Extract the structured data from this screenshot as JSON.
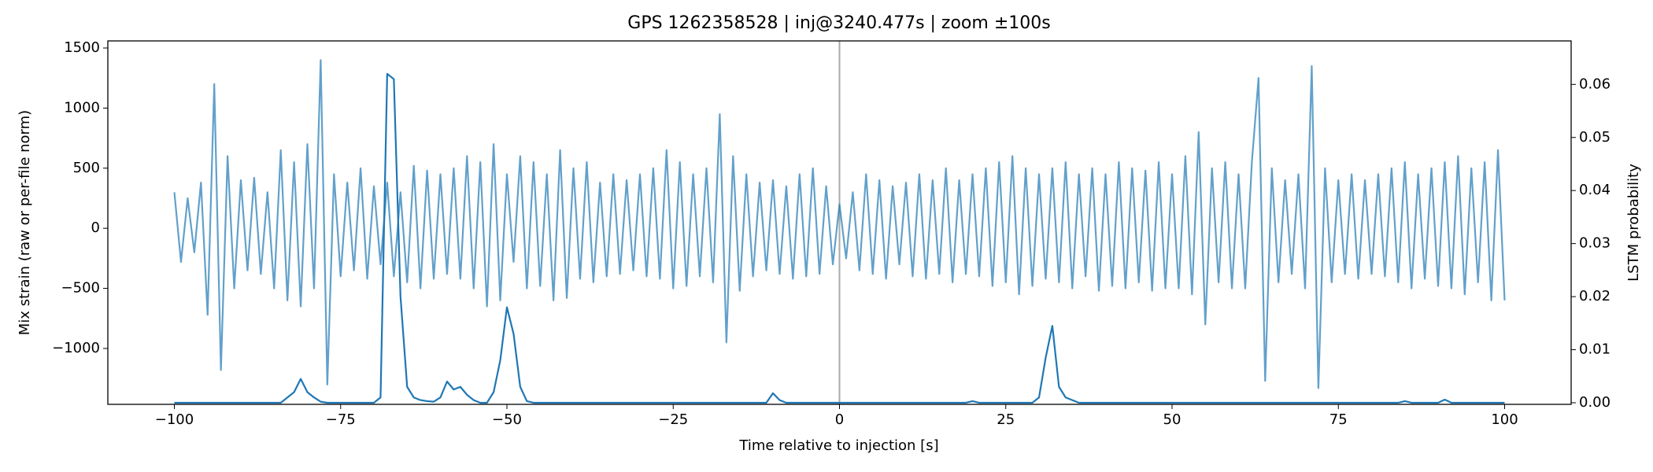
{
  "chart_data": {
    "type": "line",
    "title": "GPS 1262358528 | inj@3240.477s | zoom ±100s",
    "xlabel": "Time relative to injection [s]",
    "ylabel": "Mix strain (raw or per-file norm)",
    "y2label": "LSTM probability",
    "xlim": [
      -110,
      110
    ],
    "xticks": [
      {
        "value": -100,
        "label": "−100"
      },
      {
        "value": -75,
        "label": "−75"
      },
      {
        "value": -50,
        "label": "−50"
      },
      {
        "value": -25,
        "label": "−25"
      },
      0,
      25,
      50,
      75,
      100
    ],
    "ylim": [
      -1465,
      1559
    ],
    "yticks": [
      {
        "value": -1000,
        "label": "−1000"
      },
      {
        "value": -500,
        "label": "−500"
      },
      0,
      500,
      1000,
      1500
    ],
    "y2lim": [
      -0.0003,
      0.0682
    ],
    "y2ticks": [
      {
        "value": 0,
        "label": "0.00"
      },
      0.01,
      0.02,
      0.03,
      0.04,
      0.05,
      0.06
    ],
    "vline": {
      "x": 0,
      "color": "#aaaaaa"
    },
    "x": [
      -100,
      -99,
      -98,
      -97,
      -96,
      -95,
      -94,
      -93,
      -92,
      -91,
      -90,
      -89,
      -88,
      -87,
      -86,
      -85,
      -84,
      -83,
      -82,
      -81,
      -80,
      -79,
      -78,
      -77,
      -76,
      -75,
      -74,
      -73,
      -72,
      -71,
      -70,
      -69,
      -68,
      -67,
      -66,
      -65,
      -64,
      -63,
      -62,
      -61,
      -60,
      -59,
      -58,
      -57,
      -56,
      -55,
      -54,
      -53,
      -52,
      -51,
      -50,
      -49,
      -48,
      -47,
      -46,
      -45,
      -44,
      -43,
      -42,
      -41,
      -40,
      -39,
      -38,
      -37,
      -36,
      -35,
      -34,
      -33,
      -32,
      -31,
      -30,
      -29,
      -28,
      -27,
      -26,
      -25,
      -24,
      -23,
      -22,
      -21,
      -20,
      -19,
      -18,
      -17,
      -16,
      -15,
      -14,
      -13,
      -12,
      -11,
      -10,
      -9,
      -8,
      -7,
      -6,
      -5,
      -4,
      -3,
      -2,
      -1,
      0,
      1,
      2,
      3,
      4,
      5,
      6,
      7,
      8,
      9,
      10,
      11,
      12,
      13,
      14,
      15,
      16,
      17,
      18,
      19,
      20,
      21,
      22,
      23,
      24,
      25,
      26,
      27,
      28,
      29,
      30,
      31,
      32,
      33,
      34,
      35,
      36,
      37,
      38,
      39,
      40,
      41,
      42,
      43,
      44,
      45,
      46,
      47,
      48,
      49,
      50,
      51,
      52,
      53,
      54,
      55,
      56,
      57,
      58,
      59,
      60,
      61,
      62,
      63,
      64,
      65,
      66,
      67,
      68,
      69,
      70,
      71,
      72,
      73,
      74,
      75,
      76,
      77,
      78,
      79,
      80,
      81,
      82,
      83,
      84,
      85,
      86,
      87,
      88,
      89,
      90,
      91,
      92,
      93,
      94,
      95,
      96,
      97,
      98,
      99,
      100
    ],
    "series": [
      {
        "color": "#1f77b4",
        "alpha": 0.7,
        "axis": "y",
        "values": [
          300,
          -280,
          250,
          -200,
          380,
          -720,
          1200,
          -1180,
          600,
          -500,
          400,
          -350,
          420,
          -380,
          300,
          -500,
          650,
          -600,
          550,
          -650,
          700,
          -500,
          1400,
          -1300,
          450,
          -400,
          380,
          -350,
          500,
          -420,
          350,
          -300,
          380,
          -400,
          300,
          -450,
          520,
          -500,
          480,
          -420,
          450,
          -380,
          500,
          -420,
          600,
          -500,
          550,
          -650,
          700,
          -600,
          450,
          -280,
          600,
          -500,
          550,
          -480,
          450,
          -600,
          650,
          -580,
          500,
          -420,
          550,
          -450,
          380,
          -400,
          450,
          -380,
          400,
          -350,
          450,
          -400,
          500,
          -420,
          650,
          -500,
          550,
          -480,
          450,
          -400,
          500,
          -450,
          950,
          -950,
          600,
          -520,
          450,
          -400,
          380,
          -350,
          400,
          -380,
          350,
          -420,
          450,
          -400,
          500,
          -380,
          350,
          -300,
          200,
          -250,
          300,
          -350,
          450,
          -380,
          400,
          -420,
          350,
          -300,
          380,
          -400,
          450,
          -420,
          400,
          -380,
          500,
          -450,
          400,
          -380,
          450,
          -400,
          500,
          -480,
          550,
          -450,
          600,
          -550,
          500,
          -480,
          450,
          -420,
          500,
          -450,
          550,
          -500,
          450,
          -400,
          500,
          -520,
          450,
          -480,
          550,
          -500,
          500,
          -450,
          480,
          -520,
          550,
          -500,
          450,
          -500,
          600,
          -550,
          800,
          -800,
          500,
          -450,
          550,
          -500,
          450,
          -500,
          550,
          1250,
          -1270,
          500,
          -450,
          400,
          -380,
          450,
          -500,
          1350,
          -1330,
          500,
          -450,
          400,
          -380,
          450,
          -420,
          400,
          -380,
          450,
          -400,
          500,
          -450,
          550,
          -500,
          450,
          -420,
          500,
          -480,
          550,
          -500,
          600,
          -550,
          500,
          -450,
          550,
          -600,
          650,
          -600
        ]
      },
      {
        "color": "#1f77b4",
        "alpha": 1,
        "axis": "y2",
        "values": [
          0,
          0,
          0,
          0,
          0,
          0,
          0,
          0,
          0,
          0,
          0,
          0,
          0,
          0,
          0,
          0,
          0,
          0.001,
          0.002,
          0.0045,
          0.002,
          0.001,
          0.0002,
          0,
          0,
          0,
          0,
          0,
          0,
          0,
          0,
          0.001,
          0.062,
          0.061,
          0.02,
          0.003,
          0.001,
          0.0005,
          0.0003,
          0.0002,
          0.001,
          0.004,
          0.0025,
          0.003,
          0.0015,
          0.0005,
          0,
          0,
          0.002,
          0.008,
          0.018,
          0.013,
          0.003,
          0.0003,
          0,
          0,
          0,
          0,
          0,
          0,
          0,
          0,
          0,
          0,
          0,
          0,
          0,
          0,
          0,
          0,
          0,
          0,
          0,
          0,
          0,
          0,
          0,
          0,
          0,
          0,
          0,
          0,
          0,
          0,
          0,
          0,
          0,
          0,
          0,
          0,
          0.0018,
          0.0005,
          0,
          0,
          0,
          0,
          0,
          0,
          0,
          0,
          0,
          0,
          0,
          0,
          0,
          0,
          0,
          0,
          0,
          0,
          0,
          0,
          0,
          0,
          0,
          0,
          0,
          0,
          0,
          0,
          0.0003,
          0,
          0,
          0,
          0,
          0,
          0,
          0,
          0,
          0,
          0.001,
          0.0085,
          0.0145,
          0.003,
          0.001,
          0.0005,
          0,
          0,
          0,
          0,
          0,
          0,
          0,
          0,
          0,
          0,
          0,
          0,
          0,
          0,
          0,
          0,
          0,
          0,
          0,
          0,
          0,
          0,
          0,
          0,
          0,
          0,
          0,
          0,
          0,
          0,
          0,
          0,
          0,
          0,
          0,
          0,
          0,
          0,
          0,
          0,
          0,
          0,
          0,
          0,
          0,
          0,
          0,
          0,
          0,
          0.0003,
          0,
          0,
          0,
          0,
          0,
          0.0006,
          0,
          0,
          0,
          0,
          0,
          0,
          0,
          0,
          0
        ]
      }
    ]
  }
}
